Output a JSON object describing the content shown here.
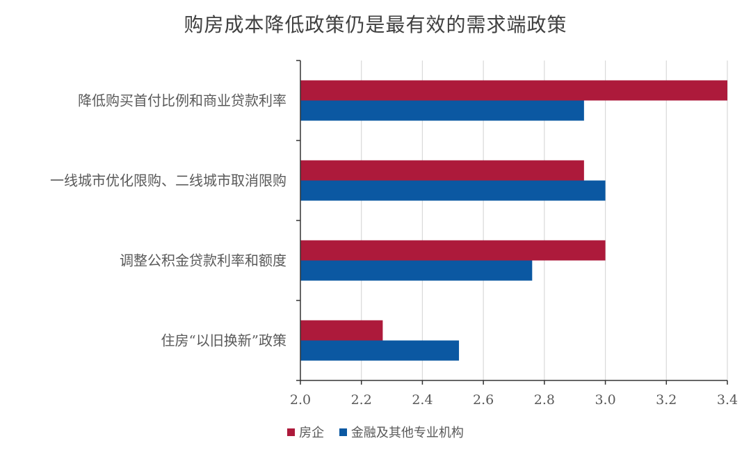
{
  "chart_data": {
    "type": "bar",
    "orientation": "horizontal",
    "title": "购房成本降低政策仍是最有效的需求端政策",
    "categories": [
      "降低购买首付比例和商业贷款利率",
      "一线城市优化限购、二线城市取消限购",
      "调整公积金贷款利率和额度",
      "住房“以旧换新”政策"
    ],
    "series": [
      {
        "name": "房企",
        "color": "#ad1a3b",
        "values": [
          3.4,
          2.93,
          3.0,
          2.27
        ]
      },
      {
        "name": "金融及其他专业机构",
        "color": "#0b58a2",
        "values": [
          2.93,
          3.0,
          2.76,
          2.52
        ]
      }
    ],
    "xlim": [
      2.0,
      3.4
    ],
    "xticks": [
      "2.0",
      "2.2",
      "2.4",
      "2.6",
      "2.8",
      "3.0",
      "3.2",
      "3.4"
    ],
    "grid": true,
    "legend_position": "bottom"
  }
}
